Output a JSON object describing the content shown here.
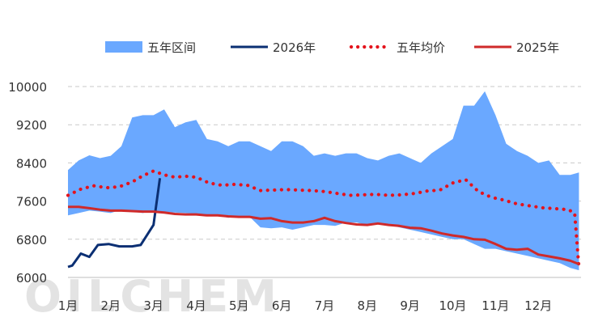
{
  "chart_data": {
    "type": "line",
    "title": "",
    "xlabel": "",
    "ylabel": "",
    "ylim": [
      6000,
      10000
    ],
    "yticks": [
      6000,
      6800,
      7600,
      8400,
      9200,
      10000
    ],
    "xlim": [
      1,
      13
    ],
    "categories": [
      "1月",
      "2月",
      "3月",
      "4月",
      "5月",
      "6月",
      "7月",
      "8月",
      "9月",
      "10月",
      "11月",
      "12月"
    ],
    "grid": "horizontal-dashed",
    "legend_position": "top",
    "watermark": "OILCHEM",
    "series": [
      {
        "name": "五年区间",
        "kind": "band",
        "color": "#6aa8ff",
        "x": [
          1.0,
          1.25,
          1.5,
          1.75,
          2.0,
          2.25,
          2.5,
          2.75,
          3.0,
          3.25,
          3.5,
          3.75,
          4.0,
          4.25,
          4.5,
          4.75,
          5.0,
          5.25,
          5.5,
          5.75,
          6.0,
          6.25,
          6.5,
          6.75,
          7.0,
          7.25,
          7.5,
          7.75,
          8.0,
          8.25,
          8.5,
          8.75,
          9.0,
          9.25,
          9.5,
          9.75,
          10.0,
          10.25,
          10.5,
          10.75,
          11.0,
          11.25,
          11.5,
          11.75,
          12.0,
          12.25,
          12.5,
          12.75,
          12.95
        ],
        "upper": [
          8250,
          8450,
          8560,
          8500,
          8550,
          8750,
          9350,
          9400,
          9400,
          9520,
          9150,
          9250,
          9300,
          8900,
          8850,
          8750,
          8850,
          8850,
          8750,
          8650,
          8850,
          8850,
          8750,
          8550,
          8600,
          8550,
          8600,
          8600,
          8500,
          8450,
          8550,
          8600,
          8500,
          8400,
          8600,
          8750,
          8900,
          9600,
          9600,
          9900,
          9400,
          8800,
          8650,
          8550,
          8400,
          8450,
          8150,
          8150,
          8200
        ],
        "lower": [
          7300,
          7350,
          7400,
          7380,
          7350,
          7420,
          7380,
          7350,
          7400,
          7380,
          7360,
          7350,
          7330,
          7320,
          7300,
          7250,
          7280,
          7270,
          7050,
          7030,
          7050,
          7000,
          7050,
          7100,
          7100,
          7080,
          7150,
          7150,
          7100,
          7150,
          7100,
          7050,
          7000,
          6950,
          6900,
          6850,
          6800,
          6800,
          6700,
          6600,
          6600,
          6550,
          6500,
          6450,
          6400,
          6350,
          6300,
          6200,
          6150
        ]
      },
      {
        "name": "2026年",
        "kind": "line",
        "color": "#0b2f73",
        "x": [
          1.0,
          1.1,
          1.3,
          1.5,
          1.7,
          1.95,
          2.2,
          2.5,
          2.7,
          3.0,
          3.15
        ],
        "y": [
          6220,
          6250,
          6500,
          6430,
          6680,
          6700,
          6650,
          6650,
          6680,
          7100,
          8080
        ]
      },
      {
        "name": "五年均价",
        "kind": "dotted",
        "color": "#e4131c",
        "x": [
          1.0,
          1.3,
          1.6,
          1.9,
          2.2,
          2.5,
          2.75,
          3.0,
          3.25,
          3.5,
          3.75,
          4.0,
          4.3,
          4.6,
          4.9,
          5.2,
          5.5,
          5.8,
          6.1,
          6.4,
          6.7,
          7.0,
          7.3,
          7.6,
          7.9,
          8.2,
          8.5,
          8.8,
          9.1,
          9.4,
          9.7,
          10.0,
          10.3,
          10.6,
          10.9,
          11.2,
          11.5,
          11.8,
          12.1,
          12.4,
          12.7,
          12.85,
          12.95
        ],
        "y": [
          7720,
          7850,
          7920,
          7880,
          7900,
          8000,
          8130,
          8230,
          8150,
          8100,
          8120,
          8100,
          7980,
          7930,
          7950,
          7930,
          7820,
          7830,
          7840,
          7830,
          7820,
          7800,
          7760,
          7720,
          7730,
          7740,
          7720,
          7730,
          7760,
          7810,
          7830,
          7980,
          8050,
          7800,
          7680,
          7620,
          7540,
          7500,
          7460,
          7440,
          7420,
          7350,
          6200
        ]
      },
      {
        "name": "2025年",
        "kind": "line",
        "color": "#cf2a2a",
        "x": [
          1.0,
          1.25,
          1.5,
          1.75,
          2.0,
          2.25,
          2.5,
          2.75,
          3.0,
          3.25,
          3.5,
          3.75,
          4.0,
          4.25,
          4.5,
          4.75,
          5.0,
          5.25,
          5.5,
          5.75,
          6.0,
          6.25,
          6.5,
          6.75,
          7.0,
          7.25,
          7.5,
          7.75,
          8.0,
          8.25,
          8.5,
          8.75,
          9.0,
          9.25,
          9.5,
          9.75,
          10.0,
          10.25,
          10.5,
          10.75,
          11.0,
          11.25,
          11.5,
          11.75,
          12.0,
          12.25,
          12.5,
          12.75,
          12.95
        ],
        "y": [
          7480,
          7480,
          7450,
          7420,
          7400,
          7400,
          7390,
          7380,
          7380,
          7360,
          7330,
          7320,
          7320,
          7300,
          7300,
          7280,
          7270,
          7270,
          7230,
          7240,
          7180,
          7150,
          7150,
          7180,
          7250,
          7180,
          7140,
          7110,
          7100,
          7130,
          7100,
          7080,
          7040,
          7030,
          6980,
          6920,
          6880,
          6850,
          6800,
          6790,
          6700,
          6600,
          6580,
          6600,
          6480,
          6440,
          6400,
          6350,
          6280
        ]
      }
    ]
  }
}
